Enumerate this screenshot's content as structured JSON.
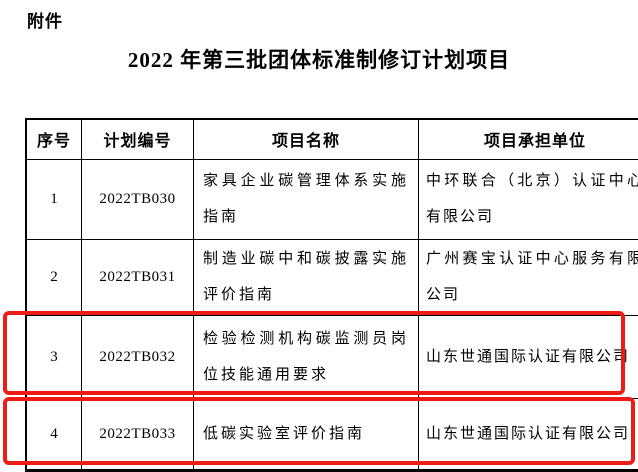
{
  "page": {
    "attachment_label": "附件",
    "title": "2022 年第三批团体标准制修订计划项目"
  },
  "colors": {
    "highlight_red": "#ee1c16",
    "table_border": "#000000"
  },
  "table": {
    "headers": [
      "序号",
      "计划编号",
      "项目名称",
      "项目承担单位"
    ],
    "rows": [
      {
        "seq": "1",
        "plan_no": "2022TB030",
        "project_name": "家具企业碳管理体系实施指南",
        "undertaker": "中环联合（北京）认证中心有限公司",
        "highlighted": false
      },
      {
        "seq": "2",
        "plan_no": "2022TB031",
        "project_name": "制造业碳中和碳披露实施评价指南",
        "undertaker": "广州赛宝认证中心服务有限公司",
        "highlighted": false
      },
      {
        "seq": "3",
        "plan_no": "2022TB032",
        "project_name": "检验检测机构碳监测员岗位技能通用要求",
        "undertaker": "山东世通国际认证有限公司",
        "highlighted": true
      },
      {
        "seq": "4",
        "plan_no": "2022TB033",
        "project_name": "低碳实验室评价指南",
        "undertaker": "山东世通国际认证有限公司",
        "highlighted": true
      }
    ]
  }
}
